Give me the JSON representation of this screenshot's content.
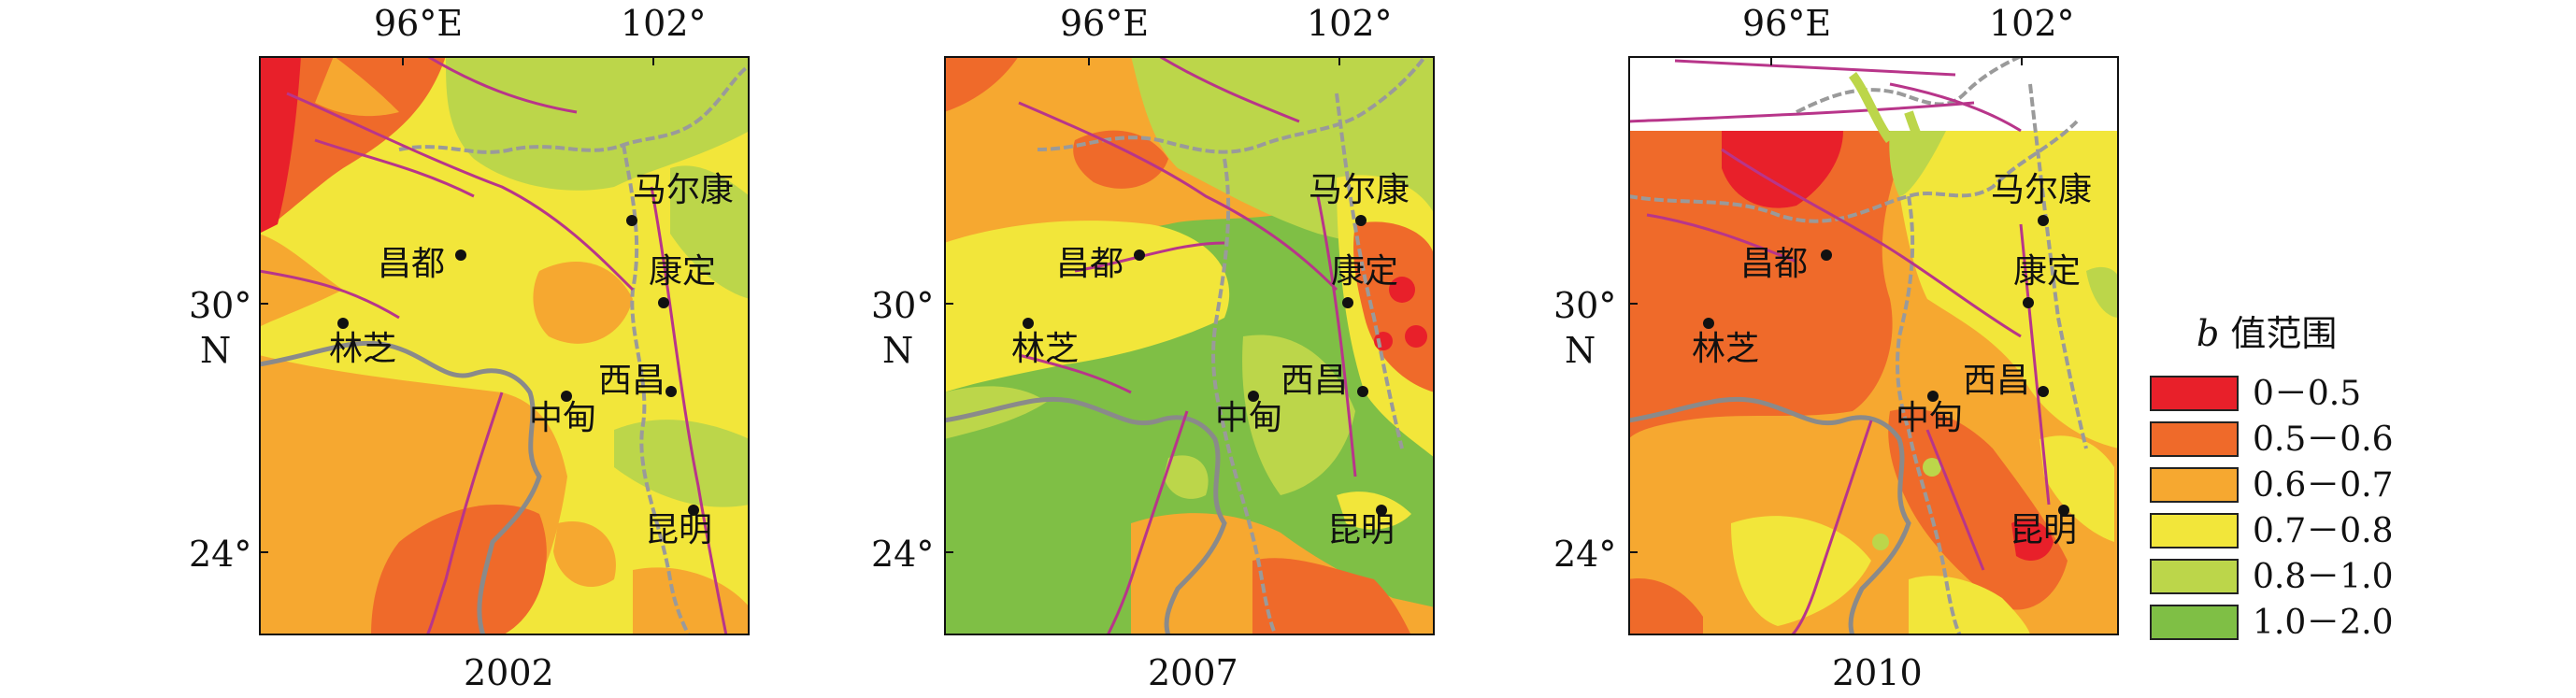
{
  "axes": {
    "lon_left": "96°E",
    "lon_right": "102°",
    "lat_30": "30°",
    "lat_n": "N",
    "lat_24": "24°"
  },
  "panels": [
    {
      "year": "2002"
    },
    {
      "year": "2007"
    },
    {
      "year": "2010"
    }
  ],
  "cities": {
    "maerkang": "马尔康",
    "changdu": "昌都",
    "kangding": "康定",
    "linzhi": "林芝",
    "xichang": "西昌",
    "zhongdian": "中甸",
    "kunming": "昆明"
  },
  "legend": {
    "title_var": "b",
    "title_text": " 值范围",
    "items": [
      {
        "label": "0－0.5",
        "color": "#e8202a"
      },
      {
        "label": "0.5－0.6",
        "color": "#ef6a2a"
      },
      {
        "label": "0.6－0.7",
        "color": "#f6a830"
      },
      {
        "label": "0.7－0.8",
        "color": "#f2e63a"
      },
      {
        "label": "0.8－1.0",
        "color": "#bcd64a"
      },
      {
        "label": "1.0－2.0",
        "color": "#7fbf45"
      }
    ]
  }
}
